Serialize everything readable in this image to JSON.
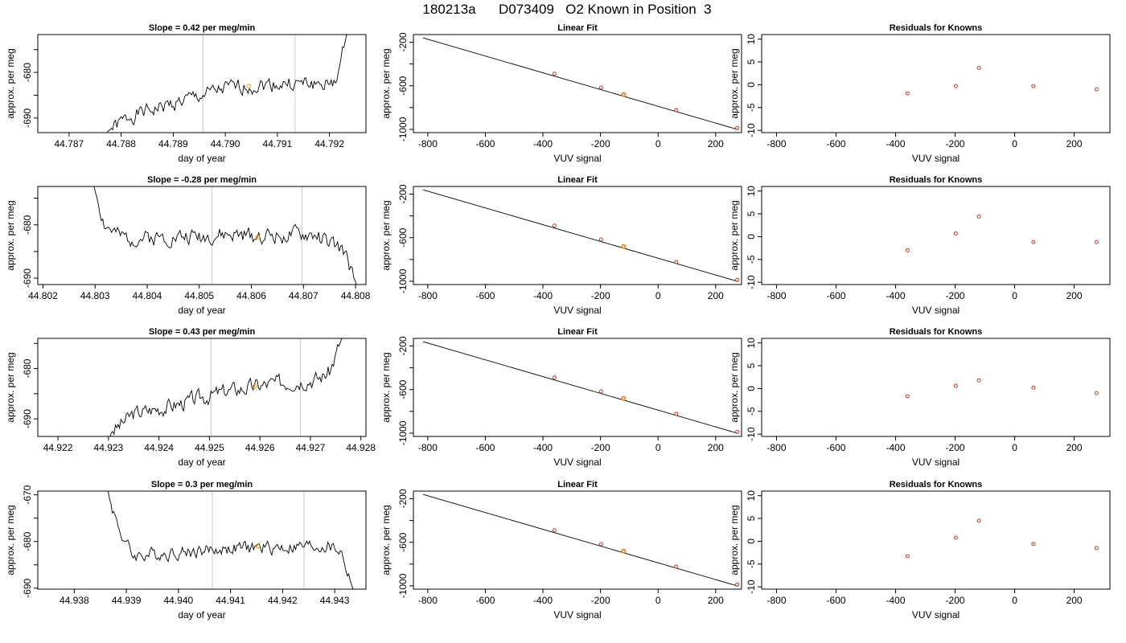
{
  "figure": {
    "title": "180213a      D073409   O2 Known in Position  3",
    "colors": {
      "trace": "#000000",
      "vline": "#c8c8c8",
      "point": "#c0392b",
      "highlight": "#f39c12",
      "fit_line": "#000000"
    }
  },
  "chart_data": [
    {
      "type": "line",
      "title": "Slope =  0.42  per meg/min",
      "xlabel": "day of year",
      "ylabel": "approx. per meg",
      "xlim": [
        44.7864,
        44.7927
      ],
      "ylim": [
        -693.2,
        -671.7
      ],
      "xticks": [
        {
          "v": 44.787,
          "t": "44.787"
        },
        {
          "v": 44.788,
          "t": "44.788"
        },
        {
          "v": 44.789,
          "t": "44.789"
        },
        {
          "v": 44.79,
          "t": "44.790"
        },
        {
          "v": 44.791,
          "t": "44.791"
        },
        {
          "v": 44.792,
          "t": "44.792"
        }
      ],
      "yticks": [
        {
          "v": -690,
          "t": "-690"
        },
        {
          "v": -685,
          "t": ""
        },
        {
          "v": -680,
          "t": "-680"
        },
        {
          "v": -675,
          "t": ""
        }
      ],
      "vlines": [
        44.78957,
        44.79134
      ],
      "trace": {
        "start": 44.78773,
        "end": 44.79233,
        "n": 170,
        "seed": 1,
        "amp": 2.6,
        "start_y": -693.2,
        "end_y": -671.7,
        "knots": [
          [
            0,
            -693
          ],
          [
            0.1,
            -689.5
          ],
          [
            0.3,
            -686.5
          ],
          [
            0.5,
            -683.5
          ],
          [
            0.7,
            -682.5
          ],
          [
            0.9,
            -682.5
          ],
          [
            0.94,
            -683
          ],
          [
            0.97,
            -679
          ],
          [
            1,
            -671.7
          ]
        ]
      },
      "marker": {
        "x": 44.79045,
        "y": -683.0
      }
    },
    {
      "type": "scatter",
      "title": "Linear Fit",
      "xlabel": "VUV signal",
      "ylabel": "approx. per meg",
      "xlim": [
        -850,
        290
      ],
      "ylim": [
        -1030,
        -130
      ],
      "xticks": [
        {
          "v": -800,
          "t": "-800"
        },
        {
          "v": -600,
          "t": "-600"
        },
        {
          "v": -400,
          "t": "-400"
        },
        {
          "v": -200,
          "t": "-200"
        },
        {
          "v": 0,
          "t": "0"
        },
        {
          "v": 200,
          "t": "200"
        }
      ],
      "yticks": [
        {
          "v": -200,
          "t": "-200"
        },
        {
          "v": -400,
          "t": ""
        },
        {
          "v": -600,
          "t": "-600"
        },
        {
          "v": -800,
          "t": ""
        },
        {
          "v": -1000,
          "t": "-1000"
        }
      ],
      "fit": {
        "x": [
          -817,
          275
        ],
        "y": [
          -160,
          -1000
        ]
      },
      "points": [
        {
          "x": -360,
          "y": -490
        },
        {
          "x": -198,
          "y": -617
        },
        {
          "x": -120,
          "y": -681,
          "highlight": true
        },
        {
          "x": 63,
          "y": -823
        },
        {
          "x": 275,
          "y": -988
        }
      ]
    },
    {
      "type": "scatter",
      "title": "Residuals for Knowns",
      "xlabel": "VUV signal",
      "ylabel": "approx. per meg",
      "xlim": [
        -850,
        320
      ],
      "ylim": [
        -10.5,
        11
      ],
      "xticks": [
        {
          "v": -800,
          "t": "-800"
        },
        {
          "v": -600,
          "t": "-600"
        },
        {
          "v": -400,
          "t": "-400"
        },
        {
          "v": -200,
          "t": "-200"
        },
        {
          "v": 0,
          "t": "0"
        },
        {
          "v": 200,
          "t": "200"
        }
      ],
      "yticks": [
        {
          "v": -10,
          "t": "-10"
        },
        {
          "v": -5,
          "t": "-5"
        },
        {
          "v": 0,
          "t": "0"
        },
        {
          "v": 5,
          "t": "5"
        },
        {
          "v": 10,
          "t": "10"
        }
      ],
      "points": [
        {
          "x": -360,
          "y": -1.9
        },
        {
          "x": -198,
          "y": -0.3
        },
        {
          "x": -120,
          "y": 3.7
        },
        {
          "x": 63,
          "y": -0.3
        },
        {
          "x": 275,
          "y": -1.0
        }
      ]
    },
    {
      "type": "line",
      "title": "Slope =  -0.28  per meg/min",
      "xlabel": "day of year",
      "ylabel": "approx. per meg",
      "xlim": [
        44.8019,
        44.8082
      ],
      "ylim": [
        -691.2,
        -672.8
      ],
      "xticks": [
        {
          "v": 44.802,
          "t": "44.802"
        },
        {
          "v": 44.803,
          "t": "44.803"
        },
        {
          "v": 44.804,
          "t": "44.804"
        },
        {
          "v": 44.805,
          "t": "44.805"
        },
        {
          "v": 44.806,
          "t": "44.806"
        },
        {
          "v": 44.807,
          "t": "44.807"
        },
        {
          "v": 44.808,
          "t": "44.808"
        }
      ],
      "yticks": [
        {
          "v": -690,
          "t": "-690"
        },
        {
          "v": -685,
          "t": ""
        },
        {
          "v": -680,
          "t": "-680"
        },
        {
          "v": -675,
          "t": ""
        }
      ],
      "vlines": [
        44.80524,
        44.80697
      ],
      "trace": {
        "start": 44.80298,
        "end": 44.80802,
        "n": 180,
        "seed": 2,
        "amp": 2.4,
        "start_y": -672.8,
        "end_y": -691.2,
        "knots": [
          [
            0,
            -673
          ],
          [
            0.04,
            -680
          ],
          [
            0.1,
            -682.5
          ],
          [
            0.5,
            -682
          ],
          [
            0.85,
            -682
          ],
          [
            0.95,
            -685
          ],
          [
            1,
            -691.2
          ]
        ]
      },
      "marker": {
        "x": 44.80612,
        "y": -682.3
      }
    },
    {
      "type": "scatter",
      "title": "Linear Fit",
      "xlabel": "VUV signal",
      "ylabel": "approx. per meg",
      "xlim": [
        -850,
        290
      ],
      "ylim": [
        -1030,
        -130
      ],
      "xticks": [
        {
          "v": -800,
          "t": "-800"
        },
        {
          "v": -600,
          "t": "-600"
        },
        {
          "v": -400,
          "t": "-400"
        },
        {
          "v": -200,
          "t": "-200"
        },
        {
          "v": 0,
          "t": "0"
        },
        {
          "v": 200,
          "t": "200"
        }
      ],
      "yticks": [
        {
          "v": -200,
          "t": "-200"
        },
        {
          "v": -400,
          "t": ""
        },
        {
          "v": -600,
          "t": "-600"
        },
        {
          "v": -800,
          "t": ""
        },
        {
          "v": -1000,
          "t": "-1000"
        }
      ],
      "fit": {
        "x": [
          -817,
          275
        ],
        "y": [
          -160,
          -1000
        ]
      },
      "points": [
        {
          "x": -360,
          "y": -490
        },
        {
          "x": -198,
          "y": -617
        },
        {
          "x": -120,
          "y": -681,
          "highlight": true
        },
        {
          "x": 63,
          "y": -823
        },
        {
          "x": 275,
          "y": -988
        }
      ]
    },
    {
      "type": "scatter",
      "title": "Residuals for Knowns",
      "xlabel": "VUV signal",
      "ylabel": "approx. per meg",
      "xlim": [
        -850,
        320
      ],
      "ylim": [
        -10.5,
        11
      ],
      "xticks": [
        {
          "v": -800,
          "t": "-800"
        },
        {
          "v": -600,
          "t": "-600"
        },
        {
          "v": -400,
          "t": "-400"
        },
        {
          "v": -200,
          "t": "-200"
        },
        {
          "v": 0,
          "t": "0"
        },
        {
          "v": 200,
          "t": "200"
        }
      ],
      "yticks": [
        {
          "v": -10,
          "t": "-10"
        },
        {
          "v": -5,
          "t": "-5"
        },
        {
          "v": 0,
          "t": "0"
        },
        {
          "v": 5,
          "t": "5"
        },
        {
          "v": 10,
          "t": "10"
        }
      ],
      "points": [
        {
          "x": -360,
          "y": -3.0
        },
        {
          "x": -198,
          "y": 0.7
        },
        {
          "x": -120,
          "y": 4.4
        },
        {
          "x": 63,
          "y": -1.2
        },
        {
          "x": 275,
          "y": -1.2
        }
      ]
    },
    {
      "type": "line",
      "title": "Slope =  0.43  per meg/min",
      "xlabel": "day of year",
      "ylabel": "approx. per meg",
      "xlim": [
        44.9216,
        44.9281
      ],
      "ylim": [
        -693.5,
        -674
      ],
      "xticks": [
        {
          "v": 44.922,
          "t": "44.922"
        },
        {
          "v": 44.923,
          "t": "44.923"
        },
        {
          "v": 44.924,
          "t": "44.924"
        },
        {
          "v": 44.925,
          "t": "44.925"
        },
        {
          "v": 44.926,
          "t": "44.926"
        },
        {
          "v": 44.927,
          "t": "44.927"
        },
        {
          "v": 44.928,
          "t": "44.928"
        }
      ],
      "yticks": [
        {
          "v": -690,
          "t": "-690"
        },
        {
          "v": -685,
          "t": ""
        },
        {
          "v": -680,
          "t": "-680"
        },
        {
          "v": -675,
          "t": ""
        }
      ],
      "vlines": [
        44.92503,
        44.9268
      ],
      "trace": {
        "start": 44.92303,
        "end": 44.92762,
        "n": 170,
        "seed": 3,
        "amp": 2.5,
        "start_y": -693.5,
        "end_y": -674,
        "knots": [
          [
            0,
            -693
          ],
          [
            0.1,
            -689
          ],
          [
            0.3,
            -687
          ],
          [
            0.5,
            -684.5
          ],
          [
            0.7,
            -683
          ],
          [
            0.9,
            -682
          ],
          [
            0.95,
            -680.5
          ],
          [
            1,
            -674
          ]
        ]
      },
      "marker": {
        "x": 44.9259,
        "y": -683.5
      }
    },
    {
      "type": "scatter",
      "title": "Linear Fit",
      "xlabel": "VUV signal",
      "ylabel": "approx. per meg",
      "xlim": [
        -850,
        290
      ],
      "ylim": [
        -1030,
        -130
      ],
      "xticks": [
        {
          "v": -800,
          "t": "-800"
        },
        {
          "v": -600,
          "t": "-600"
        },
        {
          "v": -400,
          "t": "-400"
        },
        {
          "v": -200,
          "t": "-200"
        },
        {
          "v": 0,
          "t": "0"
        },
        {
          "v": 200,
          "t": "200"
        }
      ],
      "yticks": [
        {
          "v": -200,
          "t": "-200"
        },
        {
          "v": -400,
          "t": ""
        },
        {
          "v": -600,
          "t": "-600"
        },
        {
          "v": -800,
          "t": ""
        },
        {
          "v": -1000,
          "t": "-1000"
        }
      ],
      "fit": {
        "x": [
          -817,
          275
        ],
        "y": [
          -160,
          -1000
        ]
      },
      "points": [
        {
          "x": -360,
          "y": -490
        },
        {
          "x": -198,
          "y": -617
        },
        {
          "x": -120,
          "y": -681,
          "highlight": true
        },
        {
          "x": 63,
          "y": -823
        },
        {
          "x": 275,
          "y": -988
        }
      ]
    },
    {
      "type": "scatter",
      "title": "Residuals for Knowns",
      "xlabel": "VUV signal",
      "ylabel": "approx. per meg",
      "xlim": [
        -850,
        320
      ],
      "ylim": [
        -10.5,
        11
      ],
      "xticks": [
        {
          "v": -800,
          "t": "-800"
        },
        {
          "v": -600,
          "t": "-600"
        },
        {
          "v": -400,
          "t": "-400"
        },
        {
          "v": -200,
          "t": "-200"
        },
        {
          "v": 0,
          "t": "0"
        },
        {
          "v": 200,
          "t": "200"
        }
      ],
      "yticks": [
        {
          "v": -10,
          "t": "-10"
        },
        {
          "v": -5,
          "t": "-5"
        },
        {
          "v": 0,
          "t": "0"
        },
        {
          "v": 5,
          "t": "5"
        },
        {
          "v": 10,
          "t": "10"
        }
      ],
      "points": [
        {
          "x": -360,
          "y": -1.7
        },
        {
          "x": -198,
          "y": 0.6
        },
        {
          "x": -120,
          "y": 1.8
        },
        {
          "x": 63,
          "y": 0.2
        },
        {
          "x": 275,
          "y": -1.0
        }
      ]
    },
    {
      "type": "line",
      "title": "Slope =  0.3  per meg/min",
      "xlabel": "day of year",
      "ylabel": "approx. per meg",
      "xlim": [
        44.9373,
        44.9436
      ],
      "ylim": [
        -690.2,
        -669.2
      ],
      "xticks": [
        {
          "v": 44.938,
          "t": "44.938"
        },
        {
          "v": 44.939,
          "t": "44.939"
        },
        {
          "v": 44.94,
          "t": "44.940"
        },
        {
          "v": 44.941,
          "t": "44.941"
        },
        {
          "v": 44.942,
          "t": "44.942"
        },
        {
          "v": 44.943,
          "t": "44.943"
        }
      ],
      "yticks": [
        {
          "v": -690,
          "t": "-690"
        },
        {
          "v": -685,
          "t": ""
        },
        {
          "v": -680,
          "t": "-680"
        },
        {
          "v": -675,
          "t": ""
        },
        {
          "v": -670,
          "t": "-670"
        }
      ],
      "vlines": [
        44.94065,
        44.94241
      ],
      "trace": {
        "start": 44.93865,
        "end": 44.94335,
        "n": 175,
        "seed": 4,
        "amp": 2.3,
        "start_y": -669.2,
        "end_y": -690.2,
        "knots": [
          [
            0,
            -670
          ],
          [
            0.05,
            -678
          ],
          [
            0.1,
            -683
          ],
          [
            0.5,
            -681.5
          ],
          [
            0.9,
            -681
          ],
          [
            0.95,
            -682
          ],
          [
            1,
            -690.2
          ]
        ]
      },
      "marker": {
        "x": 44.94152,
        "y": -681.0
      }
    },
    {
      "type": "scatter",
      "title": "Linear Fit",
      "xlabel": "VUV signal",
      "ylabel": "approx. per meg",
      "xlim": [
        -850,
        290
      ],
      "ylim": [
        -1030,
        -130
      ],
      "xticks": [
        {
          "v": -800,
          "t": "-800"
        },
        {
          "v": -600,
          "t": "-600"
        },
        {
          "v": -400,
          "t": "-400"
        },
        {
          "v": -200,
          "t": "-200"
        },
        {
          "v": 0,
          "t": "0"
        },
        {
          "v": 200,
          "t": "200"
        }
      ],
      "yticks": [
        {
          "v": -200,
          "t": "-200"
        },
        {
          "v": -400,
          "t": ""
        },
        {
          "v": -600,
          "t": "-600"
        },
        {
          "v": -800,
          "t": ""
        },
        {
          "v": -1000,
          "t": "-1000"
        }
      ],
      "fit": {
        "x": [
          -817,
          275
        ],
        "y": [
          -160,
          -1000
        ]
      },
      "points": [
        {
          "x": -360,
          "y": -490
        },
        {
          "x": -198,
          "y": -617
        },
        {
          "x": -120,
          "y": -681,
          "highlight": true
        },
        {
          "x": 63,
          "y": -823
        },
        {
          "x": 275,
          "y": -988
        }
      ]
    },
    {
      "type": "scatter",
      "title": "Residuals for Knowns",
      "xlabel": "VUV signal",
      "ylabel": "approx. per meg",
      "xlim": [
        -850,
        320
      ],
      "ylim": [
        -10.5,
        11
      ],
      "xticks": [
        {
          "v": -800,
          "t": "-800"
        },
        {
          "v": -600,
          "t": "-600"
        },
        {
          "v": -400,
          "t": "-400"
        },
        {
          "v": -200,
          "t": "-200"
        },
        {
          "v": 0,
          "t": "0"
        },
        {
          "v": 200,
          "t": "200"
        }
      ],
      "yticks": [
        {
          "v": -10,
          "t": "-10"
        },
        {
          "v": -5,
          "t": "-5"
        },
        {
          "v": 0,
          "t": "0"
        },
        {
          "v": 5,
          "t": "5"
        },
        {
          "v": 10,
          "t": "10"
        }
      ],
      "points": [
        {
          "x": -360,
          "y": -3.3
        },
        {
          "x": -198,
          "y": 0.8
        },
        {
          "x": -120,
          "y": 4.5
        },
        {
          "x": 63,
          "y": -0.6
        },
        {
          "x": 275,
          "y": -1.5
        }
      ]
    }
  ]
}
